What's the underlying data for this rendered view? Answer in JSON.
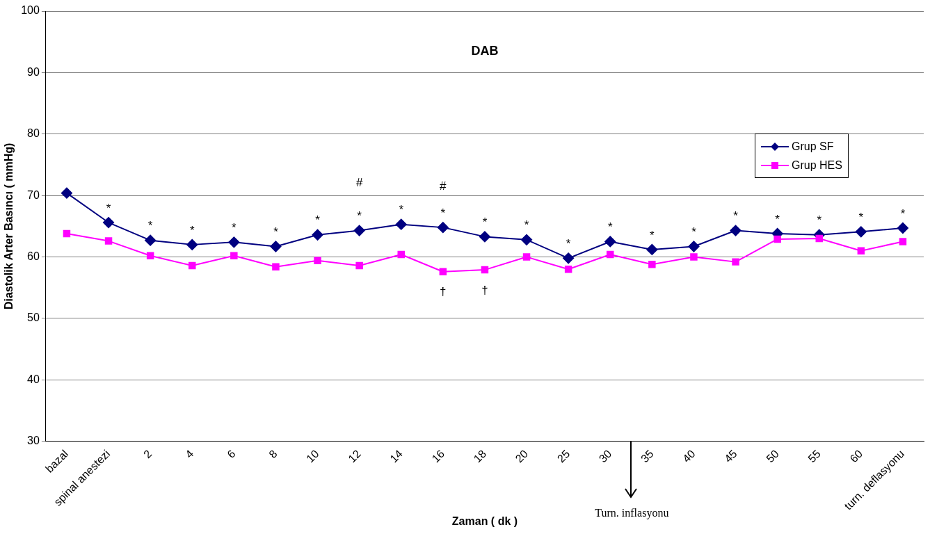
{
  "chart_data": {
    "type": "line",
    "title": "DAB",
    "xlabel": "Zaman ( dk )",
    "ylabel": "Diastolik Arter Basıncı ( mmHg)",
    "categories": [
      "bazal",
      "spinal anestezi",
      "2",
      "4",
      "6",
      "8",
      "10",
      "12",
      "14",
      "16",
      "18",
      "20",
      "25",
      "30",
      "35",
      "40",
      "45",
      "50",
      "55",
      "60",
      "turn. deflasyonu"
    ],
    "series": [
      {
        "name": "Grup SF",
        "color": "#000080",
        "marker": "diamond",
        "values": [
          70.4,
          65.6,
          62.7,
          62.0,
          62.4,
          61.7,
          63.6,
          64.3,
          65.3,
          64.8,
          63.3,
          62.8,
          59.8,
          62.5,
          61.2,
          61.7,
          64.3,
          63.8,
          63.6,
          64.1,
          64.7
        ]
      },
      {
        "name": "Grup HES",
        "color": "#ff00ff",
        "marker": "square",
        "values": [
          63.8,
          62.6,
          60.2,
          58.6,
          60.2,
          58.4,
          59.4,
          58.6,
          60.4,
          57.6,
          57.9,
          60.0,
          58.0,
          60.4,
          58.8,
          60.0,
          59.2,
          62.9,
          63.0,
          61.0,
          62.5
        ]
      }
    ],
    "ylim": [
      30,
      100
    ],
    "yticks": [
      30,
      40,
      50,
      60,
      70,
      80,
      90,
      100
    ],
    "grid": "y",
    "legend": "right",
    "annotations": [
      {
        "text": "*",
        "x": "spinal anestezi",
        "y": 65.6
      },
      {
        "text": "*",
        "x": "2",
        "y": 62.7
      },
      {
        "text": "*",
        "x": "4",
        "y": 62.0
      },
      {
        "text": "*",
        "x": "6",
        "y": 62.4
      },
      {
        "text": "*",
        "x": "8",
        "y": 61.7
      },
      {
        "text": "*",
        "x": "10",
        "y": 63.6
      },
      {
        "text": "*",
        "x": "12",
        "y": 64.3
      },
      {
        "text": "*",
        "x": "14",
        "y": 65.3
      },
      {
        "text": "*",
        "x": "16",
        "y": 64.8
      },
      {
        "text": "*",
        "x": "18",
        "y": 63.3
      },
      {
        "text": "*",
        "x": "20",
        "y": 62.8
      },
      {
        "text": "*",
        "x": "25",
        "y": 59.8
      },
      {
        "text": "*",
        "x": "30",
        "y": 62.5
      },
      {
        "text": "*",
        "x": "35",
        "y": 61.2
      },
      {
        "text": "*",
        "x": "40",
        "y": 61.7
      },
      {
        "text": "*",
        "x": "45",
        "y": 64.3
      },
      {
        "text": "*",
        "x": "50",
        "y": 63.8
      },
      {
        "text": "*",
        "x": "55",
        "y": 63.6
      },
      {
        "text": "*",
        "x": "60",
        "y": 64.1
      },
      {
        "text": "*",
        "x": "turn. deflasyonu",
        "y": 64.7
      },
      "#",
      "#",
      {
        "text": "†",
        "x": "16",
        "y": 57.6
      },
      {
        "text": "†",
        "x": "18",
        "y": 57.9
      },
      "Turn.  inflasyonu"
    ]
  }
}
